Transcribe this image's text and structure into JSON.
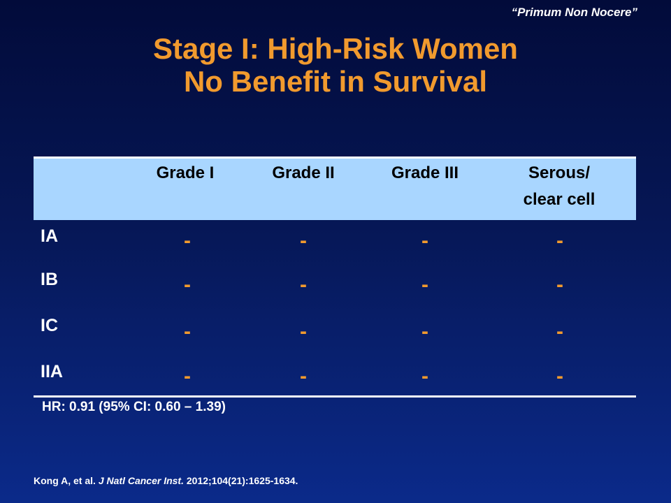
{
  "slide": {
    "tagline": "“Primum Non Nocere”",
    "title_line1": "Stage I: High-Risk Women",
    "title_line2": "No Benefit in Survival"
  },
  "table": {
    "columns": [
      "Grade I",
      "Grade II",
      "Grade III",
      "Serous/",
      "clear cell"
    ],
    "rows": [
      {
        "label": "IA",
        "cells": [
          "-",
          "-",
          "-",
          "-"
        ]
      },
      {
        "label": "IB",
        "cells": [
          "-",
          "-",
          "-",
          "-"
        ]
      },
      {
        "label": "IC",
        "cells": [
          "-",
          "-",
          "-",
          "-"
        ]
      },
      {
        "label": "IIA",
        "cells": [
          "-",
          "-",
          "-",
          "-"
        ]
      }
    ],
    "footnote": "HR: 0.91 (95% CI: 0.60 – 1.39)"
  },
  "citation": {
    "authors": "Kong A, et al.",
    "journal": "J Natl Cancer Inst.",
    "details": "2012;104(21):1625-1634."
  },
  "colors": {
    "background_top": "#020b3a",
    "background_bottom": "#0b2a8a",
    "accent_orange": "#f19a2e",
    "header_band": "#a9d6ff"
  }
}
